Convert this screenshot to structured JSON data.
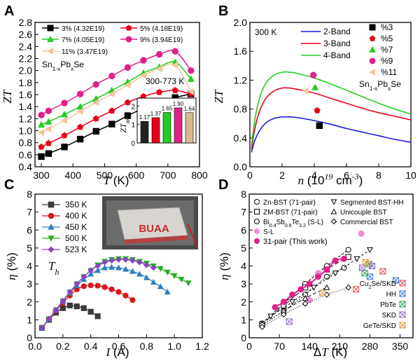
{
  "chart_data": [
    {
      "panel": "A",
      "type": "line",
      "xlabel": "T (K)",
      "ylabel": "ZT",
      "xlim": [
        280,
        800
      ],
      "ylim": [
        0.4,
        2.8
      ],
      "xticks": [
        "300",
        "400",
        "500",
        "600",
        "700",
        "800"
      ],
      "yticks": [
        "0.4",
        "0.6",
        "0.8",
        "1.0",
        "1.2",
        "1.4",
        "1.6",
        "1.8",
        "2.0",
        "2.2",
        "2.4",
        "2.6",
        "2.8"
      ],
      "annotations": [
        "Sn1-xPbxSe",
        "300-773 K"
      ],
      "legend_position": "top",
      "series": [
        {
          "name": "3% (4.32E19)",
          "marker": "square",
          "color": "#000000",
          "x": [
            300,
            323,
            373,
            423,
            473,
            523,
            573,
            623,
            673,
            723,
            773
          ],
          "y": [
            0.57,
            0.62,
            0.73,
            0.86,
            0.99,
            1.11,
            1.25,
            1.37,
            1.46,
            1.55,
            1.61
          ]
        },
        {
          "name": "5% (4.18E19)",
          "marker": "pentagon",
          "color": "#e8001a",
          "x": [
            300,
            323,
            373,
            423,
            473,
            523,
            573,
            623,
            673,
            723,
            773
          ],
          "y": [
            0.73,
            0.79,
            0.92,
            1.06,
            1.2,
            1.33,
            1.47,
            1.57,
            1.64,
            1.67,
            1.61
          ]
        },
        {
          "name": "7% (4.05E19)",
          "marker": "triangle",
          "color": "#22cc22",
          "x": [
            300,
            323,
            373,
            423,
            473,
            523,
            573,
            623,
            673,
            723,
            773
          ],
          "y": [
            1.1,
            1.15,
            1.27,
            1.4,
            1.53,
            1.67,
            1.81,
            1.96,
            2.06,
            2.14,
            1.86
          ]
        },
        {
          "name": "9% (3.94E19)",
          "marker": "circle",
          "color": "#e0218a",
          "x": [
            300,
            323,
            373,
            423,
            473,
            523,
            573,
            623,
            673,
            723,
            773
          ],
          "y": [
            1.26,
            1.33,
            1.46,
            1.61,
            1.77,
            1.91,
            2.05,
            2.17,
            2.27,
            2.32,
            2.0
          ]
        },
        {
          "name": "11% (3.47E19)",
          "marker": "triangle-left",
          "color": "#f2c79a",
          "x": [
            300,
            323,
            373,
            423,
            473,
            523,
            573,
            623,
            673,
            723,
            773
          ],
          "y": [
            0.97,
            1.03,
            1.17,
            1.32,
            1.47,
            1.61,
            1.76,
            1.92,
            2.03,
            2.09,
            1.65
          ]
        }
      ]
    },
    {
      "panel": "A-inset",
      "type": "bar",
      "ylabel": "ZTave",
      "ylim": [
        0,
        2.2
      ],
      "yticks": [
        "0",
        "1",
        "2"
      ],
      "values": [
        1.17,
        1.37,
        1.65,
        1.9,
        1.64
      ],
      "value_labels": [
        "1.17",
        "1.37",
        "1.65",
        "1.90",
        "1.64"
      ],
      "colors": [
        "#222222",
        "#e8001a",
        "#22cc22",
        "#e0218a",
        "#d7b98c"
      ]
    },
    {
      "panel": "B",
      "type": "line",
      "xlabel": "n (10^19 cm^-3)",
      "ylabel": "ZT",
      "xlim": [
        0,
        10
      ],
      "ylim": [
        0,
        2.0
      ],
      "xticks": [
        "0",
        "2",
        "4",
        "6",
        "8",
        "10"
      ],
      "yticks": [
        "0.0",
        "0.4",
        "0.8",
        "1.2",
        "1.6",
        "2.0"
      ],
      "annotations": [
        "300 K",
        "Sn1-xPbxSe"
      ],
      "legend_position": "top",
      "series": [
        {
          "name": "2-Band",
          "color": "#1a1ad6",
          "kind": "curve",
          "x": [
            0.1,
            0.3,
            0.6,
            1.0,
            1.5,
            2.0,
            2.5,
            3.0,
            4.0,
            5.0,
            6.0,
            7.0,
            8.0,
            9.0,
            10.0
          ],
          "y": [
            0.2,
            0.36,
            0.5,
            0.61,
            0.67,
            0.69,
            0.69,
            0.68,
            0.64,
            0.59,
            0.53,
            0.48,
            0.43,
            0.38,
            0.34
          ]
        },
        {
          "name": "3-Band",
          "color": "#e8001a",
          "kind": "curve",
          "x": [
            0.1,
            0.3,
            0.6,
            1.0,
            1.5,
            2.0,
            2.5,
            3.0,
            4.0,
            5.0,
            6.0,
            7.0,
            8.0,
            9.0,
            10.0
          ],
          "y": [
            0.24,
            0.52,
            0.77,
            0.95,
            1.05,
            1.09,
            1.09,
            1.07,
            1.02,
            0.95,
            0.88,
            0.81,
            0.75,
            0.7,
            0.65
          ]
        },
        {
          "name": "4-Band",
          "color": "#22cc22",
          "kind": "curve",
          "x": [
            0.1,
            0.3,
            0.6,
            1.0,
            1.5,
            2.0,
            2.5,
            3.0,
            4.0,
            5.0,
            6.0,
            7.0,
            8.0,
            9.0,
            10.0
          ],
          "y": [
            0.29,
            0.64,
            0.95,
            1.16,
            1.27,
            1.31,
            1.31,
            1.29,
            1.23,
            1.15,
            1.06,
            0.97,
            0.88,
            0.8,
            0.73
          ]
        },
        {
          "name": "%3",
          "color": "#000000",
          "marker": "square",
          "kind": "point",
          "x": [
            4.32
          ],
          "y": [
            0.57
          ]
        },
        {
          "name": "%5",
          "color": "#e8001a",
          "marker": "pentagon",
          "kind": "point",
          "x": [
            4.18
          ],
          "y": [
            0.78
          ]
        },
        {
          "name": "%7",
          "color": "#22cc22",
          "marker": "triangle",
          "kind": "point",
          "x": [
            4.05
          ],
          "y": [
            1.1
          ]
        },
        {
          "name": "%9",
          "color": "#e0218a",
          "marker": "circle",
          "kind": "point",
          "x": [
            3.94
          ],
          "y": [
            1.27
          ]
        },
        {
          "name": "%11",
          "color": "#f2c79a",
          "marker": "triangle-left",
          "kind": "point",
          "x": [
            3.47
          ],
          "y": [
            1.05
          ]
        }
      ]
    },
    {
      "panel": "C",
      "type": "line",
      "xlabel": "I (A)",
      "ylabel": "η (%)",
      "xlim": [
        0,
        1.2
      ],
      "ylim": [
        0,
        8
      ],
      "xticks": [
        "0.0",
        "0.2",
        "0.4",
        "0.6",
        "0.8",
        "1.0",
        "1.2"
      ],
      "yticks": [
        "0",
        "1",
        "2",
        "3",
        "4",
        "5",
        "6",
        "7",
        "8"
      ],
      "annotations": [
        "Th",
        "BUAA"
      ],
      "legend_position": "top-left",
      "series": [
        {
          "name": "350 K",
          "marker": "square",
          "color": "#3a3a3a",
          "x": [
            0.05,
            0.1,
            0.15,
            0.2,
            0.25,
            0.3,
            0.35,
            0.4,
            0.45
          ],
          "y": [
            0.55,
            1.0,
            1.4,
            1.65,
            1.8,
            1.75,
            1.65,
            1.45,
            1.2
          ]
        },
        {
          "name": "400 K",
          "marker": "circle",
          "color": "#d8181a",
          "x": [
            0.05,
            0.1,
            0.15,
            0.2,
            0.25,
            0.3,
            0.35,
            0.4,
            0.45,
            0.5,
            0.55,
            0.6,
            0.65,
            0.7
          ],
          "y": [
            0.55,
            1.05,
            1.5,
            1.95,
            2.35,
            2.7,
            2.87,
            2.92,
            2.9,
            2.82,
            2.7,
            2.55,
            2.35,
            2.1
          ]
        },
        {
          "name": "450 K",
          "marker": "triangle",
          "color": "#2d7fc1",
          "x": [
            0.05,
            0.1,
            0.15,
            0.2,
            0.25,
            0.3,
            0.35,
            0.4,
            0.45,
            0.5,
            0.55,
            0.6,
            0.65,
            0.7,
            0.75,
            0.8,
            0.85,
            0.9,
            0.95
          ],
          "y": [
            0.55,
            1.05,
            1.55,
            2.05,
            2.5,
            2.9,
            3.25,
            3.55,
            3.75,
            3.9,
            3.93,
            3.9,
            3.82,
            3.7,
            3.55,
            3.35,
            3.1,
            2.85,
            2.55
          ]
        },
        {
          "name": "500 K",
          "marker": "triangle-down",
          "color": "#22b022",
          "x": [
            0.05,
            0.1,
            0.15,
            0.2,
            0.25,
            0.3,
            0.35,
            0.4,
            0.45,
            0.5,
            0.55,
            0.6,
            0.65,
            0.7,
            0.75,
            0.8,
            0.85,
            0.9,
            0.95,
            1.0,
            1.05,
            1.1
          ],
          "y": [
            0.55,
            1.05,
            1.55,
            2.05,
            2.55,
            3.0,
            3.4,
            3.75,
            4.05,
            4.25,
            4.35,
            4.4,
            4.4,
            4.35,
            4.25,
            4.15,
            4.0,
            3.85,
            3.65,
            3.45,
            3.25,
            3.05
          ]
        },
        {
          "name": "523 K",
          "marker": "diamond",
          "color": "#8f3fc4",
          "x": [
            0.05,
            0.1,
            0.15,
            0.2,
            0.25,
            0.3,
            0.35,
            0.4,
            0.45,
            0.5,
            0.55,
            0.6,
            0.65,
            0.7,
            0.75,
            0.8,
            0.85
          ],
          "y": [
            0.55,
            1.05,
            1.55,
            2.05,
            2.55,
            3.0,
            3.4,
            3.75,
            4.0,
            4.2,
            4.3,
            4.35,
            4.35,
            4.3,
            4.2,
            4.05,
            3.9
          ]
        }
      ]
    },
    {
      "panel": "D",
      "type": "scatter",
      "xlabel": "ΔT (K)",
      "ylabel": "η (%)",
      "xlim": [
        0,
        380
      ],
      "ylim": [
        0,
        8
      ],
      "xticks": [
        "0",
        "70",
        "140",
        "210",
        "280",
        "350"
      ],
      "yticks": [
        "0",
        "1",
        "2",
        "3",
        "4",
        "5",
        "6",
        "7",
        "8"
      ],
      "legend": [
        "Zn-BST (71-pair)",
        "ZM-BST (71-pair)",
        "Bi0.4Sb0.6Te3.2 (S-L)",
        "S-L",
        "31-pair (This work)",
        "Segmented BST-HH",
        "Unicouple BST",
        "Commercial BST"
      ],
      "side_legend": [
        "Cu2Se/SKD",
        "HH",
        "PbTe",
        "SKD",
        "GeTe/SKD"
      ],
      "series": [
        {
          "name": "Zn-BST (71-pair)",
          "color": "#000000",
          "marker": "half-circle",
          "x": [
            30,
            80,
            130,
            180,
            230
          ],
          "y": [
            0.8,
            1.9,
            3.0,
            4.0,
            4.9
          ]
        },
        {
          "name": "ZM-BST (71-pair)",
          "color": "#000000",
          "marker": "half-square",
          "x": [
            30,
            80,
            130,
            180,
            230
          ],
          "y": [
            0.75,
            1.8,
            2.8,
            3.8,
            4.5
          ]
        },
        {
          "name": "Bi0.4Sb0.6Te3.2 (S-L)",
          "color": "#000000",
          "marker": "half-circle-dash",
          "x": [
            30,
            80,
            130,
            180,
            220
          ],
          "y": [
            0.7,
            1.5,
            2.4,
            3.4,
            3.9
          ]
        },
        {
          "name": "S-L",
          "color": "#f28cd6",
          "marker": "circle",
          "x": [
            140,
            160,
            260
          ],
          "y": [
            2.1,
            3.6,
            5.8
          ]
        },
        {
          "name": "31-pair (This work)",
          "color": "#e0218a",
          "marker": "circle",
          "x": [
            60,
            80,
            100,
            120,
            140,
            160,
            180,
            200,
            220
          ],
          "y": [
            1.7,
            2.0,
            2.4,
            2.7,
            3.0,
            3.4,
            3.8,
            4.3,
            4.4
          ]
        },
        {
          "name": "Segmented BST-HH",
          "color": "#000000",
          "marker": "triangle-down-open",
          "x": [
            50,
            100,
            150,
            200,
            250,
            280
          ],
          "y": [
            1.2,
            2.0,
            2.8,
            3.6,
            4.4,
            4.9
          ]
        },
        {
          "name": "Unicouple BST",
          "color": "#000000",
          "marker": "triangle-open",
          "x": [
            80,
            130,
            180
          ],
          "y": [
            1.5,
            2.2,
            2.8
          ]
        },
        {
          "name": "Commercial BST",
          "color": "#000000",
          "marker": "diamond-half",
          "x": [
            30,
            80,
            130,
            180,
            230
          ],
          "y": [
            0.6,
            1.3,
            1.9,
            2.4,
            2.8
          ]
        },
        {
          "name": "Cu2Se/SKD",
          "color": "#e05050",
          "marker": "x-box",
          "x": [
            248,
            310
          ],
          "y": [
            2.7,
            3.7
          ]
        },
        {
          "name": "HH",
          "color": "#3a7ad6",
          "marker": "x-box",
          "x": [
            280,
            340
          ],
          "y": [
            3.4,
            3.2
          ]
        },
        {
          "name": "PbTe",
          "color": "#30a050",
          "marker": "x-box",
          "x": [
            268,
            278
          ],
          "y": [
            3.6,
            4.1
          ]
        },
        {
          "name": "SKD",
          "color": "#9060c0",
          "marker": "x-box",
          "x": [
            93,
            262,
            285
          ],
          "y": [
            0.9,
            3.9,
            4.0
          ]
        },
        {
          "name": "GeTe/SKD",
          "color": "#e09030",
          "marker": "x-box",
          "x": [
            170,
            270
          ],
          "y": [
            2.5,
            4.2
          ]
        }
      ]
    }
  ]
}
